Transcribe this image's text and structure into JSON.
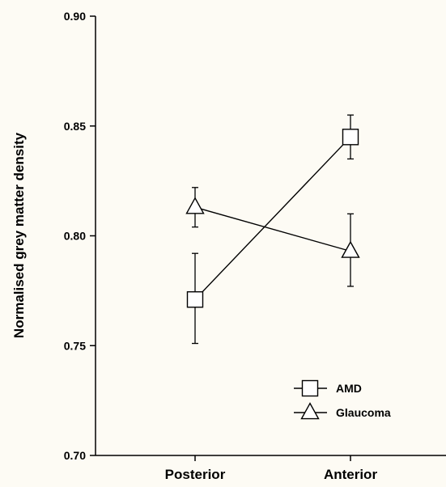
{
  "chart_data": {
    "type": "line",
    "title": "",
    "xlabel": "",
    "ylabel": "Normalised grey matter density",
    "categories": [
      "Posterior",
      "Anterior"
    ],
    "ylim": [
      0.7,
      0.9
    ],
    "yticks": [
      "0.70",
      "0.75",
      "0.80",
      "0.85",
      "0.90"
    ],
    "grid": false,
    "legend_position": "bottom-right",
    "series": [
      {
        "name": "AMD",
        "marker": "square",
        "values": [
          0.771,
          0.845
        ],
        "error_low": [
          0.751,
          0.835
        ],
        "error_high": [
          0.792,
          0.855
        ]
      },
      {
        "name": "Glaucoma",
        "marker": "triangle",
        "values": [
          0.813,
          0.793
        ],
        "error_low": [
          0.804,
          0.777
        ],
        "error_high": [
          0.822,
          0.81
        ]
      }
    ]
  }
}
